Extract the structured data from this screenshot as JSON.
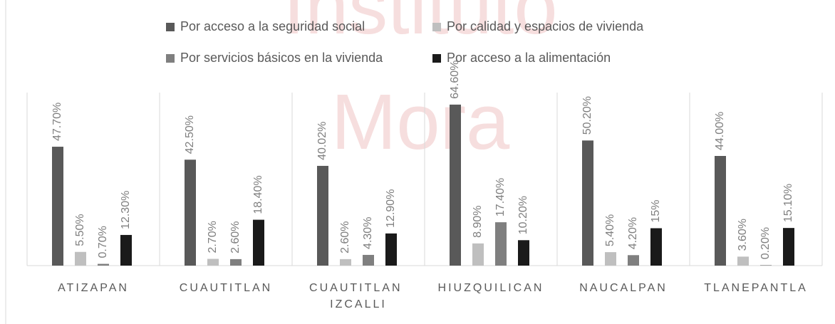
{
  "watermark": [
    "Instituto",
    "Mora"
  ],
  "chart_data": {
    "type": "bar",
    "categories": [
      "ATIZAPAN",
      "CUAUTITLAN",
      "CUAUTITLAN IZCALLI",
      "HIUZQUILICAN",
      "NAUCALPAN",
      "TLANEPANTLA"
    ],
    "ylim": [
      0,
      65
    ],
    "series": [
      {
        "name": "Por acceso a la seguridad social",
        "color": "#595959",
        "values": [
          47.7,
          42.5,
          40.02,
          64.6,
          50.2,
          44.0
        ],
        "value_labels": [
          "47.70%",
          "42.50%",
          "40.02%",
          "64.60%",
          "50.20%",
          "44.00%"
        ]
      },
      {
        "name": "Por calidad y espacios de vivienda",
        "color": "#bfbfbf",
        "values": [
          5.5,
          2.7,
          2.6,
          8.9,
          5.4,
          3.6
        ],
        "value_labels": [
          "5.50%",
          "2.70%",
          "2.60%",
          "8.90%",
          "5.40%",
          "3.60%"
        ]
      },
      {
        "name": "Por servicios básicos en la vivienda",
        "color": "#7f7f7f",
        "values": [
          0.7,
          2.6,
          4.3,
          17.4,
          4.2,
          0.2
        ],
        "value_labels": [
          "0.70%",
          "2.60%",
          "4.30%",
          "17.40%",
          "4.20%",
          "0.20%"
        ]
      },
      {
        "name": "Por acceso a la alimentación",
        "color": "#1a1a1a",
        "values": [
          12.3,
          18.4,
          12.9,
          10.2,
          15,
          15.1
        ],
        "value_labels": [
          "12.30%",
          "18.40%",
          "12.90%",
          "10.20%",
          "15%",
          "15.10%"
        ]
      }
    ],
    "legend": "top"
  }
}
